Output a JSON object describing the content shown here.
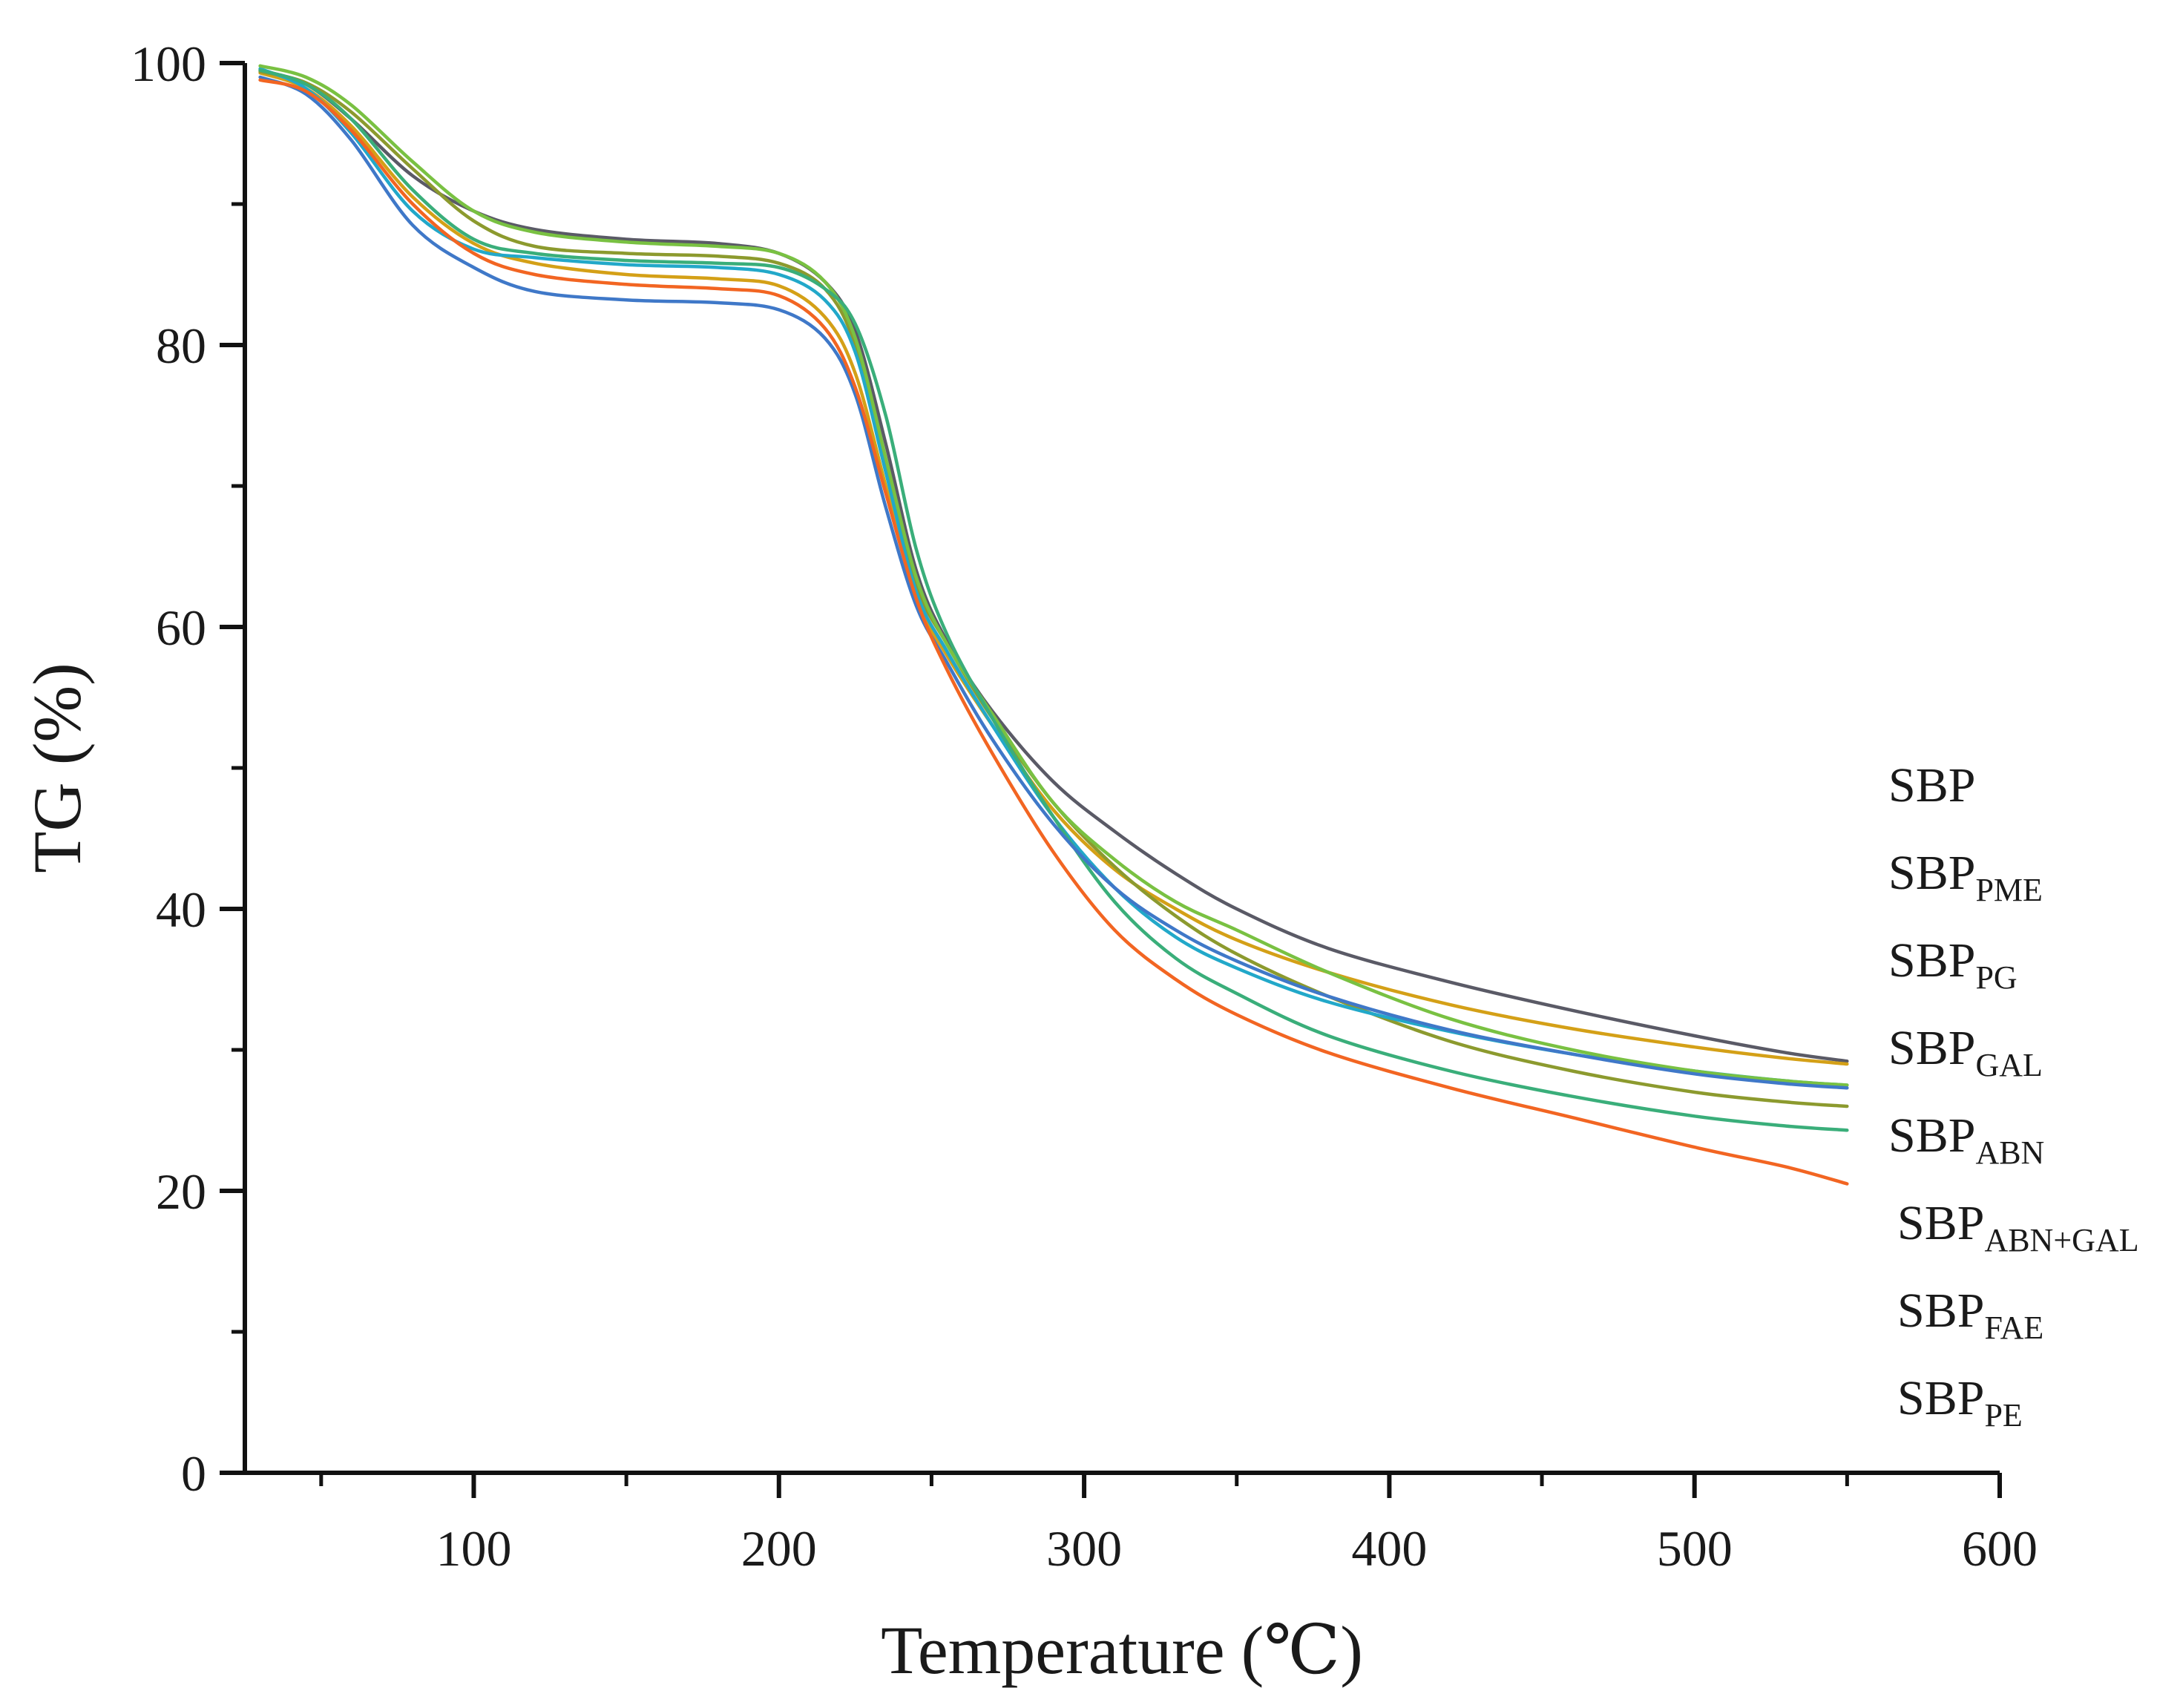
{
  "chart_data": {
    "type": "line",
    "title": "",
    "xlabel": "Temperature",
    "xlabel_unit": "(℃)",
    "ylabel": "TG (%)",
    "xlim": [
      25,
      600
    ],
    "ylim": [
      0,
      100
    ],
    "xticks": [
      100,
      200,
      300,
      400,
      500,
      600
    ],
    "yticks": [
      0,
      20,
      40,
      60,
      80,
      100
    ],
    "grid": false,
    "legend_position": "right",
    "series": [
      {
        "name": "SBP",
        "base": "SBP",
        "sub": "",
        "color": "#5a5a66",
        "x": [
          30,
          45,
          60,
          80,
          100,
          120,
          150,
          180,
          200,
          215,
          225,
          235,
          245,
          255,
          270,
          290,
          310,
          330,
          350,
          380,
          420,
          460,
          500,
          530,
          550
        ],
        "y": [
          99.5,
          98.5,
          96,
          92,
          89.5,
          88.2,
          87.5,
          87.2,
          86.5,
          84.5,
          81,
          73,
          64,
          59,
          54,
          49,
          45.5,
          42.5,
          40,
          37.2,
          34.8,
          32.8,
          31,
          29.8,
          29.2
        ]
      },
      {
        "name": "SBP_PME",
        "base": "SBP",
        "sub": "PME",
        "color": "#d4a017",
        "x": [
          30,
          45,
          60,
          80,
          100,
          120,
          150,
          180,
          200,
          215,
          225,
          235,
          245,
          255,
          270,
          290,
          310,
          330,
          350,
          380,
          420,
          460,
          500,
          530,
          550
        ],
        "y": [
          99.3,
          98.2,
          95.5,
          90.5,
          87.2,
          85.8,
          85,
          84.7,
          84.2,
          82,
          78,
          70,
          62,
          58,
          53,
          47,
          42.8,
          40,
          37.8,
          35.5,
          33.2,
          31.5,
          30.2,
          29.4,
          29
        ]
      },
      {
        "name": "SBP_PG",
        "base": "SBP",
        "sub": "PG",
        "color": "#8c9a2e",
        "x": [
          30,
          45,
          60,
          80,
          100,
          120,
          150,
          180,
          200,
          215,
          225,
          235,
          245,
          255,
          270,
          290,
          310,
          330,
          350,
          380,
          420,
          460,
          500,
          530,
          550
        ],
        "y": [
          99.4,
          98.6,
          96.5,
          92.5,
          88.8,
          87,
          86.5,
          86.3,
          85.8,
          84,
          80,
          71.5,
          63,
          58.8,
          53.5,
          47.5,
          43,
          39.5,
          36.8,
          33.8,
          30.6,
          28.5,
          27,
          26.3,
          26
        ]
      },
      {
        "name": "SBP_GAL",
        "base": "SBP",
        "sub": "GAL",
        "color": "#22a8c9",
        "x": [
          30,
          45,
          60,
          80,
          100,
          120,
          150,
          180,
          200,
          215,
          225,
          235,
          245,
          255,
          270,
          290,
          310,
          330,
          350,
          380,
          420,
          460,
          500,
          530,
          550
        ],
        "y": [
          99.6,
          98.2,
          95,
          89.5,
          86.8,
          86.2,
          85.7,
          85.5,
          85,
          83.2,
          79.5,
          71,
          62.5,
          58.3,
          53,
          46.5,
          41.5,
          38,
          35.8,
          33.4,
          31.3,
          29.7,
          28.5,
          27.8,
          27.5
        ]
      },
      {
        "name": "SBP_ABN",
        "base": "SBP",
        "sub": "ABN",
        "color": "#79c142",
        "x": [
          30,
          45,
          60,
          80,
          100,
          120,
          150,
          180,
          200,
          215,
          225,
          235,
          245,
          255,
          270,
          290,
          310,
          330,
          350,
          380,
          420,
          460,
          500,
          530,
          550
        ],
        "y": [
          99.8,
          99,
          97,
          93,
          89.5,
          88,
          87.3,
          87,
          86.5,
          84.5,
          80.5,
          72,
          63.5,
          58.8,
          53.8,
          47.5,
          43.5,
          40.5,
          38.5,
          35.5,
          32.2,
          30,
          28.5,
          27.8,
          27.5
        ]
      },
      {
        "name": "SBP_ABN+GAL",
        "base": "SBP",
        "sub": "ABN+GAL",
        "color": "#3aae7a",
        "x": [
          30,
          45,
          60,
          80,
          100,
          120,
          150,
          180,
          200,
          215,
          225,
          235,
          245,
          255,
          270,
          290,
          310,
          330,
          350,
          380,
          420,
          460,
          500,
          530,
          550
        ],
        "y": [
          99.5,
          98.5,
          96,
          91,
          87.5,
          86.5,
          86,
          85.8,
          85.5,
          84,
          81.5,
          75,
          65.5,
          59.5,
          53.5,
          46.5,
          40.5,
          36.5,
          34,
          31,
          28.5,
          26.7,
          25.3,
          24.6,
          24.3
        ]
      },
      {
        "name": "SBP_FAE",
        "base": "SBP",
        "sub": "FAE",
        "color": "#3f78c8",
        "x": [
          30,
          45,
          60,
          80,
          100,
          120,
          150,
          180,
          200,
          215,
          225,
          235,
          245,
          255,
          270,
          290,
          310,
          330,
          350,
          380,
          420,
          460,
          500,
          530,
          550
        ],
        "y": [
          99,
          97.8,
          94.5,
          88.5,
          85.5,
          83.8,
          83.2,
          83,
          82.5,
          80.5,
          76.5,
          68.5,
          61.5,
          57.5,
          52,
          46,
          41.5,
          38.5,
          36.3,
          33.8,
          31.4,
          29.7,
          28.3,
          27.6,
          27.3
        ]
      },
      {
        "name": "SBP_PE",
        "base": "SBP",
        "sub": "PE",
        "color": "#f26522",
        "x": [
          30,
          45,
          60,
          80,
          100,
          120,
          150,
          180,
          200,
          215,
          225,
          235,
          245,
          255,
          270,
          290,
          310,
          330,
          350,
          380,
          420,
          460,
          500,
          530,
          550
        ],
        "y": [
          98.8,
          98,
          95.2,
          90,
          86.5,
          85,
          84.3,
          84,
          83.5,
          81.2,
          77,
          69.5,
          62,
          57,
          51,
          44,
          38.5,
          35,
          32.5,
          29.8,
          27.3,
          25.2,
          23.1,
          21.7,
          20.5
        ]
      }
    ]
  }
}
